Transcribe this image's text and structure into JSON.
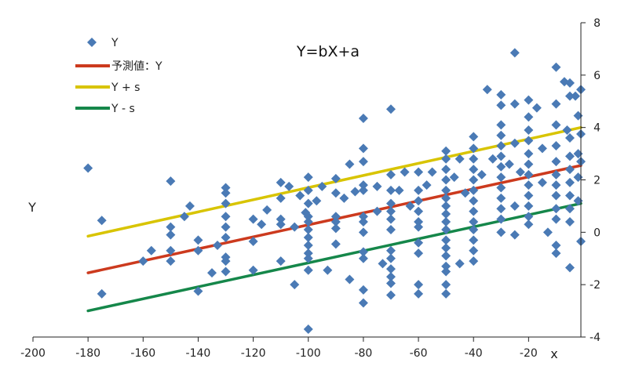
{
  "chart_data": {
    "type": "scatter",
    "title": "Y=bX+a",
    "xlabel": "x",
    "ylabel": "Y",
    "xlim": [
      -200,
      -1
    ],
    "ylim": [
      -4,
      8
    ],
    "x_ticks": [
      "-200",
      "-180",
      "-160",
      "-140",
      "-120",
      "-100",
      "-80",
      "-60",
      "-40",
      "-20"
    ],
    "y_ticks": [
      "-4",
      "-2",
      "0",
      "2",
      "4",
      "6",
      "8"
    ],
    "grid": false,
    "legend": "top-left",
    "colors": {
      "points": "#4a7ab5",
      "prediction": "#cc3a1e",
      "upper": "#d8c400",
      "lower": "#15874a",
      "axis": "#222222"
    },
    "series": [
      {
        "name": "Y",
        "kind": "points",
        "points": [
          [
            -180,
            2.45
          ],
          [
            -175,
            0.45
          ],
          [
            -175,
            -2.35
          ],
          [
            -160,
            -1.1
          ],
          [
            -157,
            -0.7
          ],
          [
            -150,
            1.95
          ],
          [
            -150,
            0.2
          ],
          [
            -150,
            -0.1
          ],
          [
            -150,
            -0.7
          ],
          [
            -150,
            -1.1
          ],
          [
            -145,
            0.6
          ],
          [
            -143,
            1.0
          ],
          [
            -140,
            -0.3
          ],
          [
            -140,
            -0.7
          ],
          [
            -140,
            -2.25
          ],
          [
            -135,
            -1.55
          ],
          [
            -133,
            -0.5
          ],
          [
            -130,
            1.7
          ],
          [
            -130,
            1.5
          ],
          [
            -130,
            1.1
          ],
          [
            -130,
            0.6
          ],
          [
            -130,
            0.2
          ],
          [
            -130,
            -0.2
          ],
          [
            -130,
            -0.95
          ],
          [
            -130,
            -1.1
          ],
          [
            -130,
            -1.5
          ],
          [
            -120,
            0.5
          ],
          [
            -120,
            -0.35
          ],
          [
            -120,
            -1.45
          ],
          [
            -117,
            0.3
          ],
          [
            -115,
            0.85
          ],
          [
            -110,
            1.9
          ],
          [
            -110,
            1.3
          ],
          [
            -110,
            0.5
          ],
          [
            -110,
            0.3
          ],
          [
            -110,
            -1.1
          ],
          [
            -107,
            1.75
          ],
          [
            -105,
            -2.0
          ],
          [
            -105,
            0.2
          ],
          [
            -103,
            1.4
          ],
          [
            -101,
            0.75
          ],
          [
            -100,
            2.1
          ],
          [
            -100,
            1.6
          ],
          [
            -100,
            1.1
          ],
          [
            -100,
            0.6
          ],
          [
            -100,
            0.4
          ],
          [
            -100,
            0.1
          ],
          [
            -100,
            -0.2
          ],
          [
            -100,
            -0.5
          ],
          [
            -100,
            -0.8
          ],
          [
            -100,
            -1.0
          ],
          [
            -100,
            -1.45
          ],
          [
            -100,
            -3.7
          ],
          [
            -97,
            1.2
          ],
          [
            -95,
            1.75
          ],
          [
            -93,
            -1.45
          ],
          [
            -90,
            2.05
          ],
          [
            -90,
            1.5
          ],
          [
            -90,
            0.6
          ],
          [
            -90,
            0.4
          ],
          [
            -90,
            0.15
          ],
          [
            -90,
            -0.45
          ],
          [
            -87,
            1.3
          ],
          [
            -85,
            2.6
          ],
          [
            -85,
            -1.8
          ],
          [
            -83,
            1.55
          ],
          [
            -80,
            4.35
          ],
          [
            -80,
            3.2
          ],
          [
            -80,
            2.7
          ],
          [
            -80,
            1.8
          ],
          [
            -80,
            1.6
          ],
          [
            -80,
            0.6
          ],
          [
            -80,
            0.4
          ],
          [
            -80,
            0.0
          ],
          [
            -80,
            -0.75
          ],
          [
            -80,
            -1.0
          ],
          [
            -80,
            -2.2
          ],
          [
            -80,
            -2.7
          ],
          [
            -75,
            1.75
          ],
          [
            -75,
            0.8
          ],
          [
            -73,
            -1.2
          ],
          [
            -70,
            4.7
          ],
          [
            -70,
            2.2
          ],
          [
            -70,
            1.6
          ],
          [
            -70,
            1.1
          ],
          [
            -70,
            0.8
          ],
          [
            -70,
            0.5
          ],
          [
            -70,
            0.1
          ],
          [
            -70,
            -0.7
          ],
          [
            -70,
            -1.0
          ],
          [
            -70,
            -1.4
          ],
          [
            -70,
            -1.7
          ],
          [
            -70,
            -1.95
          ],
          [
            -70,
            -2.4
          ],
          [
            -67,
            1.6
          ],
          [
            -65,
            2.3
          ],
          [
            -63,
            1.0
          ],
          [
            -60,
            2.3
          ],
          [
            -60,
            1.6
          ],
          [
            -60,
            1.2
          ],
          [
            -60,
            0.8
          ],
          [
            -60,
            0.4
          ],
          [
            -60,
            0.2
          ],
          [
            -60,
            -0.4
          ],
          [
            -60,
            -0.8
          ],
          [
            -60,
            -2.0
          ],
          [
            -60,
            -2.35
          ],
          [
            -57,
            1.8
          ],
          [
            -55,
            2.3
          ],
          [
            -50,
            3.1
          ],
          [
            -50,
            2.8
          ],
          [
            -50,
            2.4
          ],
          [
            -50,
            2.0
          ],
          [
            -50,
            1.6
          ],
          [
            -50,
            1.3
          ],
          [
            -50,
            1.0
          ],
          [
            -50,
            0.7
          ],
          [
            -50,
            0.4
          ],
          [
            -50,
            0.1
          ],
          [
            -50,
            -0.3
          ],
          [
            -50,
            -0.6
          ],
          [
            -50,
            -0.9
          ],
          [
            -50,
            -1.3
          ],
          [
            -50,
            -1.5
          ],
          [
            -50,
            -2.0
          ],
          [
            -50,
            -2.35
          ],
          [
            -47,
            2.1
          ],
          [
            -45,
            2.8
          ],
          [
            -45,
            -1.2
          ],
          [
            -43,
            1.5
          ],
          [
            -40,
            3.65
          ],
          [
            -40,
            3.2
          ],
          [
            -40,
            2.8
          ],
          [
            -40,
            2.4
          ],
          [
            -40,
            2.0
          ],
          [
            -40,
            1.6
          ],
          [
            -40,
            1.2
          ],
          [
            -40,
            0.8
          ],
          [
            -40,
            0.4
          ],
          [
            -40,
            0.1
          ],
          [
            -40,
            -0.3
          ],
          [
            -40,
            -0.7
          ],
          [
            -40,
            -1.1
          ],
          [
            -37,
            2.2
          ],
          [
            -35,
            5.45
          ],
          [
            -33,
            2.8
          ],
          [
            -30,
            5.25
          ],
          [
            -30,
            4.85
          ],
          [
            -30,
            4.1
          ],
          [
            -30,
            3.7
          ],
          [
            -30,
            3.3
          ],
          [
            -30,
            2.9
          ],
          [
            -30,
            2.5
          ],
          [
            -30,
            2.1
          ],
          [
            -30,
            1.7
          ],
          [
            -30,
            1.3
          ],
          [
            -30,
            0.9
          ],
          [
            -30,
            0.5
          ],
          [
            -30,
            0.0
          ],
          [
            -27,
            2.6
          ],
          [
            -25,
            6.85
          ],
          [
            -25,
            4.9
          ],
          [
            -25,
            3.4
          ],
          [
            -25,
            1.0
          ],
          [
            -25,
            -0.1
          ],
          [
            -23,
            2.3
          ],
          [
            -20,
            5.05
          ],
          [
            -20,
            4.4
          ],
          [
            -20,
            3.9
          ],
          [
            -20,
            3.5
          ],
          [
            -20,
            3.0
          ],
          [
            -20,
            2.6
          ],
          [
            -20,
            2.2
          ],
          [
            -20,
            1.8
          ],
          [
            -20,
            1.4
          ],
          [
            -20,
            1.0
          ],
          [
            -20,
            0.6
          ],
          [
            -20,
            0.3
          ],
          [
            -17,
            4.75
          ],
          [
            -15,
            3.2
          ],
          [
            -15,
            1.9
          ],
          [
            -13,
            0.0
          ],
          [
            -10,
            6.3
          ],
          [
            -10,
            4.9
          ],
          [
            -10,
            4.1
          ],
          [
            -10,
            3.3
          ],
          [
            -10,
            2.7
          ],
          [
            -10,
            2.2
          ],
          [
            -10,
            1.8
          ],
          [
            -10,
            1.4
          ],
          [
            -10,
            0.9
          ],
          [
            -10,
            0.5
          ],
          [
            -10,
            -0.5
          ],
          [
            -10,
            -0.8
          ],
          [
            -7,
            5.75
          ],
          [
            -6,
            3.9
          ],
          [
            -5,
            5.7
          ],
          [
            -5,
            5.2
          ],
          [
            -5,
            3.6
          ],
          [
            -5,
            2.9
          ],
          [
            -5,
            2.4
          ],
          [
            -5,
            1.9
          ],
          [
            -5,
            1.4
          ],
          [
            -5,
            0.9
          ],
          [
            -5,
            0.4
          ],
          [
            -5,
            -1.35
          ],
          [
            -3,
            5.2
          ],
          [
            -2,
            4.45
          ],
          [
            -2,
            3.0
          ],
          [
            -2,
            2.1
          ],
          [
            -2,
            1.2
          ],
          [
            -1,
            5.45
          ],
          [
            -1,
            3.75
          ],
          [
            -1,
            2.7
          ],
          [
            -1,
            -0.35
          ]
        ]
      },
      {
        "name": "予測値：Y",
        "kind": "line",
        "x": [
          -180,
          -1
        ],
        "y": [
          -1.55,
          2.55
        ]
      },
      {
        "name": "Y + s",
        "kind": "line",
        "x": [
          -180,
          -1
        ],
        "y": [
          -0.15,
          4.0
        ]
      },
      {
        "name": "Y - s",
        "kind": "line",
        "x": [
          -180,
          -1
        ],
        "y": [
          -3.0,
          1.1
        ]
      }
    ]
  }
}
